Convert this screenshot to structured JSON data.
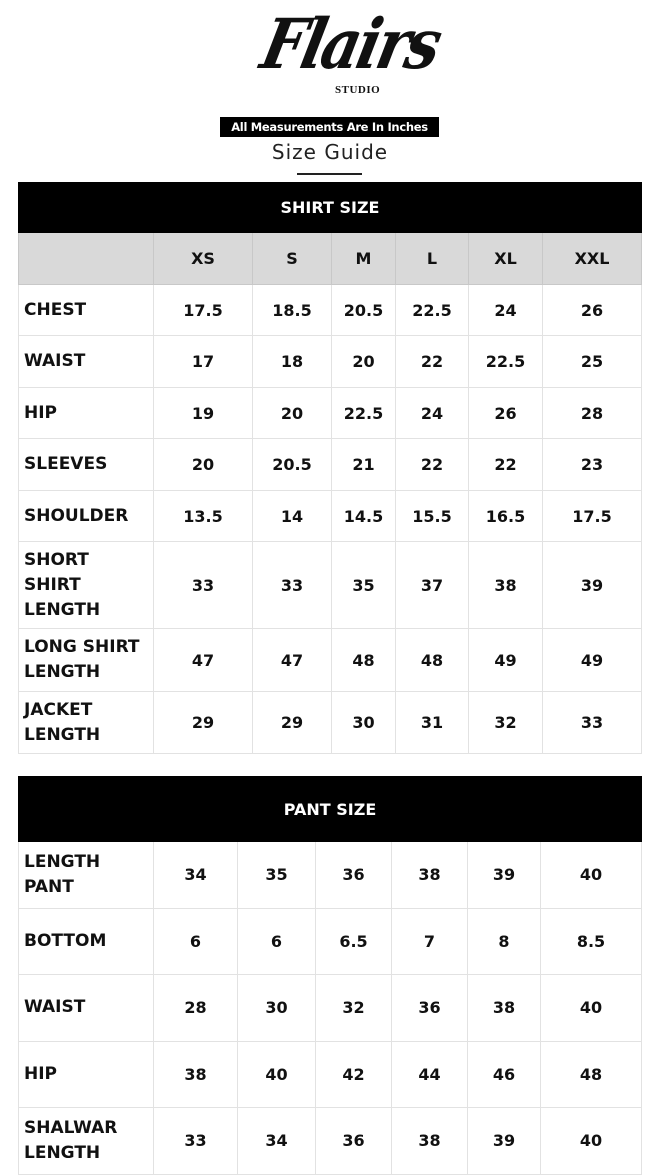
{
  "brand": {
    "logo_text": "Flairs",
    "logo_subtext": "STUDIO"
  },
  "notice": "All Measurements Are In Inches",
  "title": "Size Guide",
  "shirt": {
    "heading": "SHIRT SIZE",
    "sizes": [
      "XS",
      "S",
      "M",
      "L",
      "XL",
      "XXL"
    ],
    "rows": [
      {
        "label": "CHEST",
        "values": [
          "17.5",
          "18.5",
          "20.5",
          "22.5",
          "24",
          "26"
        ]
      },
      {
        "label": "WAIST",
        "values": [
          "17",
          "18",
          "20",
          "22",
          "22.5",
          "25"
        ]
      },
      {
        "label": "HIP",
        "values": [
          "19",
          "20",
          "22.5",
          "24",
          "26",
          "28"
        ]
      },
      {
        "label": "SLEEVES",
        "values": [
          "20",
          "20.5",
          "21",
          "22",
          "22",
          "23"
        ]
      },
      {
        "label": "SHOULDER",
        "values": [
          "13.5",
          "14",
          "14.5",
          "15.5",
          "16.5",
          "17.5"
        ]
      },
      {
        "label": "SHORT\nSHIRT\nLENGTH",
        "values": [
          "33",
          "33",
          "35",
          "37",
          "38",
          "39"
        ]
      },
      {
        "label": "LONG SHIRT\nLENGTH",
        "values": [
          "47",
          "47",
          "48",
          "48",
          "49",
          "49"
        ]
      },
      {
        "label": "JACKET\nLENGTH",
        "values": [
          "29",
          "29",
          "30",
          "31",
          "32",
          "33"
        ]
      }
    ]
  },
  "pant": {
    "heading": "PANT SIZE",
    "rows": [
      {
        "label": "LENGTH\nPANT",
        "values": [
          "34",
          "35",
          "36",
          "38",
          "39",
          "40"
        ]
      },
      {
        "label": "BOTTOM",
        "values": [
          "6",
          "6",
          "6.5",
          "7",
          "8",
          "8.5"
        ]
      },
      {
        "label": "WAIST",
        "values": [
          "28",
          "30",
          "32",
          "36",
          "38",
          "40"
        ]
      },
      {
        "label": "HIP",
        "values": [
          "38",
          "40",
          "42",
          "44",
          "46",
          "48"
        ]
      },
      {
        "label": "SHALWAR\nLENGTH",
        "values": [
          "33",
          "34",
          "36",
          "38",
          "39",
          "40"
        ]
      }
    ]
  }
}
